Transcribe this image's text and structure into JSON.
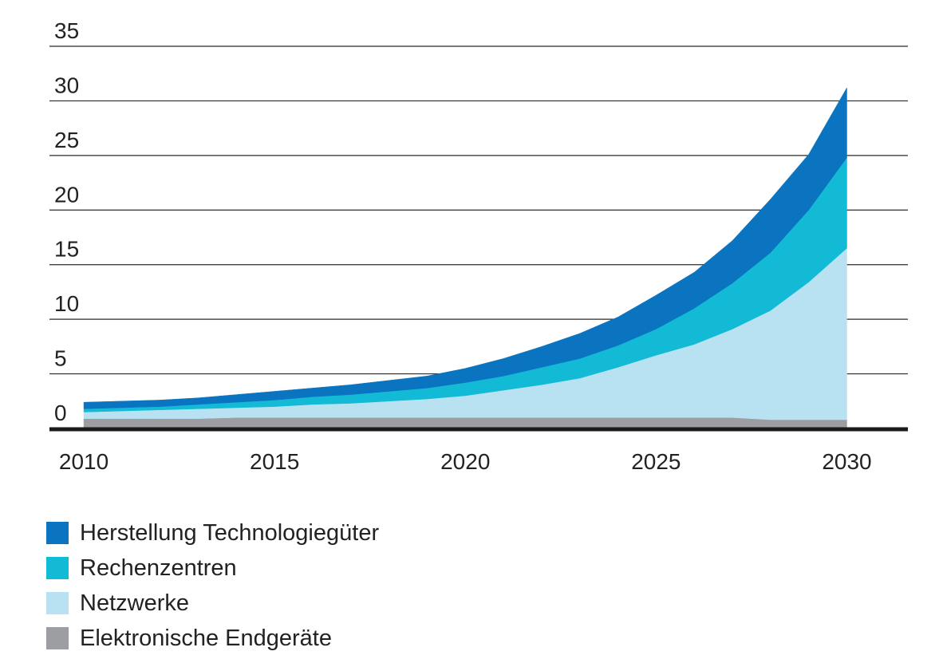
{
  "chart_data": {
    "type": "area",
    "stacked": true,
    "x": [
      2010,
      2011,
      2012,
      2013,
      2014,
      2015,
      2016,
      2017,
      2018,
      2019,
      2020,
      2021,
      2022,
      2023,
      2024,
      2025,
      2026,
      2027,
      2028,
      2029,
      2030
    ],
    "series": [
      {
        "name": "Elektronische Endgeräte",
        "color": "#9d9ea1",
        "values": [
          0.9,
          0.9,
          0.9,
          0.9,
          1.0,
          1.0,
          1.0,
          1.0,
          1.0,
          1.0,
          1.0,
          1.0,
          1.0,
          1.0,
          1.0,
          1.0,
          1.0,
          1.0,
          0.8,
          0.8,
          0.8
        ]
      },
      {
        "name": "Netzwerke",
        "color": "#b8e2f2",
        "values": [
          0.6,
          0.7,
          0.8,
          0.9,
          0.9,
          1.0,
          1.2,
          1.3,
          1.5,
          1.7,
          2.0,
          2.5,
          3.0,
          3.6,
          4.6,
          5.7,
          6.7,
          8.1,
          10.0,
          12.6,
          15.7
        ]
      },
      {
        "name": "Rechenzentren",
        "color": "#13bad6",
        "values": [
          0.3,
          0.3,
          0.3,
          0.4,
          0.5,
          0.6,
          0.7,
          0.8,
          0.9,
          1.0,
          1.2,
          1.3,
          1.6,
          1.8,
          2.0,
          2.4,
          3.3,
          4.2,
          5.3,
          6.6,
          8.3
        ]
      },
      {
        "name": "Herstellung Technologiegüter",
        "color": "#0a74c0",
        "values": [
          0.6,
          0.6,
          0.6,
          0.6,
          0.7,
          0.8,
          0.8,
          0.9,
          1.0,
          1.1,
          1.3,
          1.6,
          1.9,
          2.3,
          2.6,
          3.1,
          3.3,
          3.9,
          4.9,
          5.1,
          6.4
        ]
      }
    ],
    "ylim": [
      0,
      35
    ],
    "yticks": [
      0,
      5,
      10,
      15,
      20,
      25,
      30,
      35
    ],
    "xticks": [
      2010,
      2015,
      2020,
      2025,
      2030
    ],
    "xlim": [
      2009.1,
      2031.6
    ],
    "grid": "horizontal",
    "legend": {
      "position": "bottom-left",
      "order": [
        "Herstellung Technologiegüter",
        "Rechenzentren",
        "Netzwerke",
        "Elektronische Endgeräte"
      ]
    },
    "title": "",
    "xlabel": "",
    "ylabel": ""
  }
}
